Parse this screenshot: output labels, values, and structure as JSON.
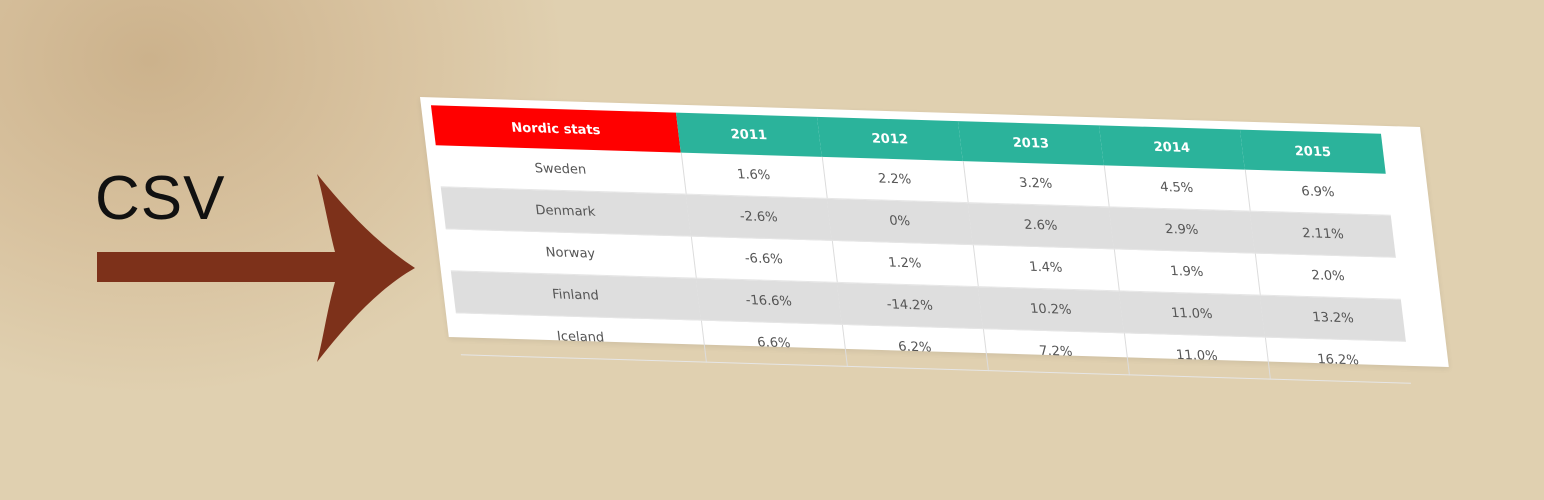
{
  "label": "CSV",
  "colors": {
    "arrow": "#7d311a",
    "header": "#2bb39b",
    "corner": "#ff0000",
    "alt_row": "#dedede"
  },
  "icons": {
    "arrow": "right-arrow-icon"
  },
  "table": {
    "corner_label": "Nordic stats",
    "years": [
      "2011",
      "2012",
      "2013",
      "2014",
      "2015"
    ],
    "rows": [
      {
        "country": "Sweden",
        "values": [
          "1.6%",
          "2.2%",
          "3.2%",
          "4.5%",
          "6.9%"
        ]
      },
      {
        "country": "Denmark",
        "values": [
          "-2.6%",
          "0%",
          "2.6%",
          "2.9%",
          "2.11%"
        ]
      },
      {
        "country": "Norway",
        "values": [
          "-6.6%",
          "1.2%",
          "1.4%",
          "1.9%",
          "2.0%"
        ]
      },
      {
        "country": "Finland",
        "values": [
          "-16.6%",
          "-14.2%",
          "10.2%",
          "11.0%",
          "13.2%"
        ]
      },
      {
        "country": "Iceland",
        "values": [
          "6.6%",
          "6.2%",
          "7.2%",
          "11.0%",
          "16.2%"
        ]
      }
    ]
  }
}
